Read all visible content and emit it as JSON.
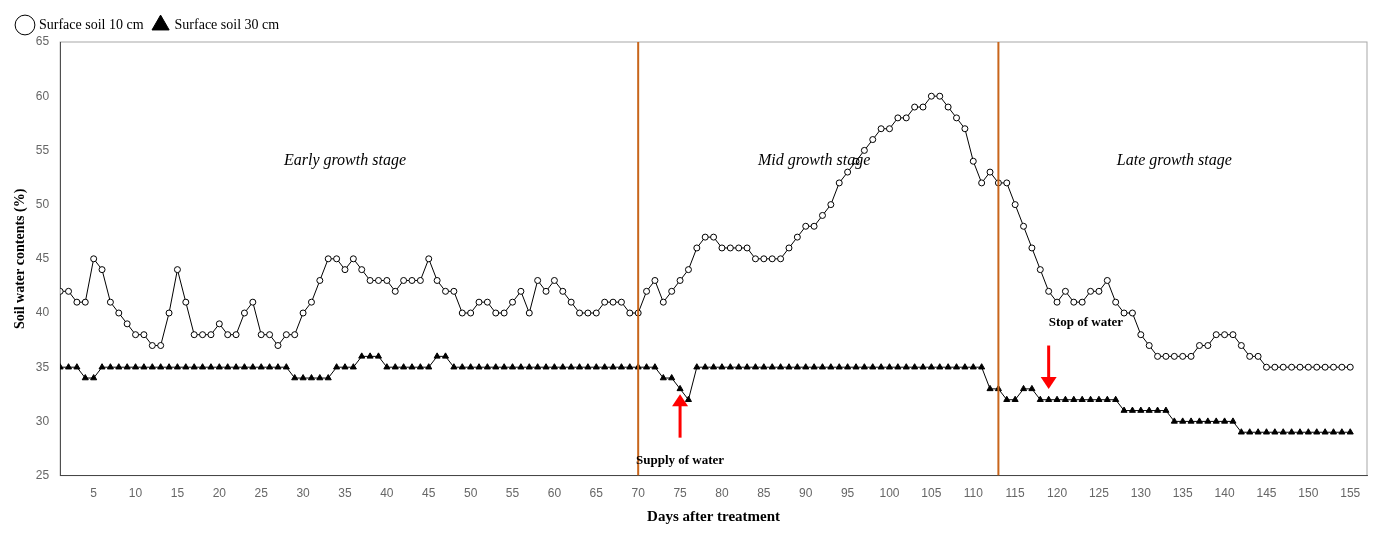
{
  "chart_data": {
    "type": "line",
    "xlabel": "Days after treatment",
    "ylabel": "Soil water contents (%)",
    "xlim": [
      1,
      157
    ],
    "ylim": [
      25,
      65
    ],
    "xticks": [
      5,
      10,
      15,
      20,
      25,
      30,
      35,
      40,
      45,
      50,
      55,
      60,
      65,
      70,
      75,
      80,
      85,
      90,
      95,
      100,
      105,
      110,
      115,
      120,
      125,
      130,
      135,
      140,
      145,
      150,
      155
    ],
    "yticks": [
      25,
      30,
      35,
      40,
      45,
      50,
      55,
      60,
      65
    ],
    "grid": false,
    "legend": "upper left",
    "x": [
      1,
      2,
      3,
      4,
      5,
      6,
      7,
      8,
      9,
      10,
      11,
      12,
      13,
      14,
      15,
      16,
      17,
      18,
      19,
      20,
      21,
      22,
      23,
      24,
      25,
      26,
      27,
      28,
      29,
      30,
      31,
      32,
      33,
      34,
      35,
      36,
      37,
      38,
      39,
      40,
      41,
      42,
      43,
      44,
      45,
      46,
      47,
      48,
      49,
      50,
      51,
      52,
      53,
      54,
      55,
      56,
      57,
      58,
      59,
      60,
      61,
      62,
      63,
      64,
      65,
      66,
      67,
      68,
      69,
      70,
      71,
      72,
      73,
      74,
      75,
      76,
      77,
      78,
      79,
      80,
      81,
      82,
      83,
      84,
      85,
      86,
      87,
      88,
      89,
      90,
      91,
      92,
      93,
      94,
      95,
      96,
      97,
      98,
      99,
      100,
      101,
      102,
      103,
      104,
      105,
      106,
      107,
      108,
      109,
      110,
      111,
      112,
      113,
      114,
      115,
      116,
      117,
      118,
      119,
      120,
      121,
      122,
      123,
      124,
      125,
      126,
      127,
      128,
      129,
      130,
      131,
      132,
      133,
      134,
      135,
      136,
      137,
      138,
      139,
      140,
      141,
      142,
      143,
      144,
      145,
      146,
      147,
      148,
      149,
      150,
      151,
      152,
      153,
      154,
      155
    ],
    "series": [
      {
        "name": "Surface soil 10 cm",
        "color": "#000000",
        "marker": "circle",
        "values": [
          42,
          42,
          41,
          41,
          45,
          44,
          41,
          40,
          39,
          38,
          38,
          37,
          37,
          40,
          44,
          41,
          38,
          38,
          38,
          39,
          38,
          38,
          40,
          41,
          38,
          38,
          37,
          38,
          38,
          40,
          41,
          43,
          45,
          45,
          44,
          45,
          44,
          43,
          43,
          43,
          42,
          43,
          43,
          43,
          45,
          43,
          42,
          42,
          40,
          40,
          41,
          41,
          40,
          40,
          41,
          42,
          40,
          43,
          42,
          43,
          42,
          41,
          40,
          40,
          40,
          41,
          41,
          41,
          40,
          40,
          42,
          43,
          41,
          42,
          43,
          44,
          46,
          47,
          47,
          46,
          46,
          46,
          46,
          45,
          45,
          45,
          45,
          46,
          47,
          48,
          48,
          49,
          50,
          52,
          53,
          54,
          55,
          56,
          57,
          57,
          58,
          58,
          59,
          59,
          60,
          60,
          59,
          58,
          57,
          54,
          52,
          53,
          52,
          52,
          50,
          48,
          46,
          44,
          42,
          41,
          42,
          41,
          41,
          42,
          42,
          43,
          41,
          40,
          40,
          38,
          37,
          36,
          36,
          36,
          36,
          36,
          37,
          37,
          38,
          38,
          38,
          37,
          36,
          36,
          35,
          35,
          35,
          35,
          35,
          35,
          35,
          35,
          35,
          35,
          35
        ]
      },
      {
        "name": "Surface soil 30 cm",
        "color": "#000000",
        "marker": "triangle",
        "values": [
          35,
          35,
          35,
          34,
          34,
          35,
          35,
          35,
          35,
          35,
          35,
          35,
          35,
          35,
          35,
          35,
          35,
          35,
          35,
          35,
          35,
          35,
          35,
          35,
          35,
          35,
          35,
          35,
          34,
          34,
          34,
          34,
          34,
          35,
          35,
          35,
          36,
          36,
          36,
          35,
          35,
          35,
          35,
          35,
          35,
          36,
          36,
          35,
          35,
          35,
          35,
          35,
          35,
          35,
          35,
          35,
          35,
          35,
          35,
          35,
          35,
          35,
          35,
          35,
          35,
          35,
          35,
          35,
          35,
          35,
          35,
          35,
          34,
          34,
          33,
          32,
          35,
          35,
          35,
          35,
          35,
          35,
          35,
          35,
          35,
          35,
          35,
          35,
          35,
          35,
          35,
          35,
          35,
          35,
          35,
          35,
          35,
          35,
          35,
          35,
          35,
          35,
          35,
          35,
          35,
          35,
          35,
          35,
          35,
          35,
          35,
          33,
          33,
          32,
          32,
          33,
          33,
          32,
          32,
          32,
          32,
          32,
          32,
          32,
          32,
          32,
          32,
          31,
          31,
          31,
          31,
          31,
          31,
          30,
          30,
          30,
          30,
          30,
          30,
          30,
          30,
          29,
          29,
          29,
          29,
          29,
          29,
          29,
          29,
          29,
          29,
          29,
          29,
          29,
          29
        ]
      }
    ],
    "annotations": [
      {
        "type": "vline",
        "x": 70,
        "color": "#C8651B"
      },
      {
        "type": "vline",
        "x": 113,
        "color": "#C8651B"
      },
      {
        "type": "text",
        "text": "Early growth stage",
        "x": 35,
        "y": 54
      },
      {
        "type": "text",
        "text": "Mid growth stage",
        "x": 91,
        "y": 54
      },
      {
        "type": "text",
        "text": "Late growth stage",
        "x": 134,
        "y": 54
      },
      {
        "type": "arrow",
        "text": "Supply of water",
        "x": 75,
        "y": 27.0,
        "arrow_from": 28.5,
        "arrow_to": 32.5,
        "color": "red"
      },
      {
        "type": "arrow",
        "text": "Stop of water",
        "x": 119,
        "y": 38.5,
        "arrow_from": 37.0,
        "arrow_to": 33.0,
        "color": "red"
      }
    ]
  }
}
